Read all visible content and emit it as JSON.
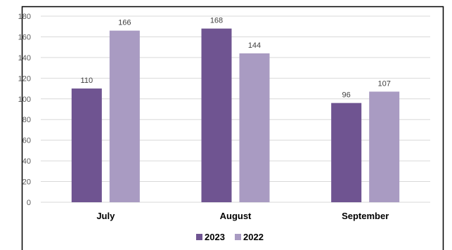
{
  "chart_data": {
    "type": "bar",
    "categories": [
      "July",
      "August",
      "September"
    ],
    "series": [
      {
        "name": "2023",
        "values": [
          110,
          168,
          96
        ],
        "color": "#6F5491"
      },
      {
        "name": "2022",
        "values": [
          166,
          144,
          107
        ],
        "color": "#A99BC2"
      }
    ],
    "title": "",
    "xlabel": "",
    "ylabel": "",
    "ylim": [
      0,
      180
    ],
    "yticks": [
      "0",
      "20",
      "40",
      "60",
      "80",
      "100",
      "120",
      "140",
      "160",
      "180"
    ],
    "grid": true,
    "legend_position": "bottom",
    "gridline_color": "#D9D9D9",
    "border_color": "#000000"
  }
}
